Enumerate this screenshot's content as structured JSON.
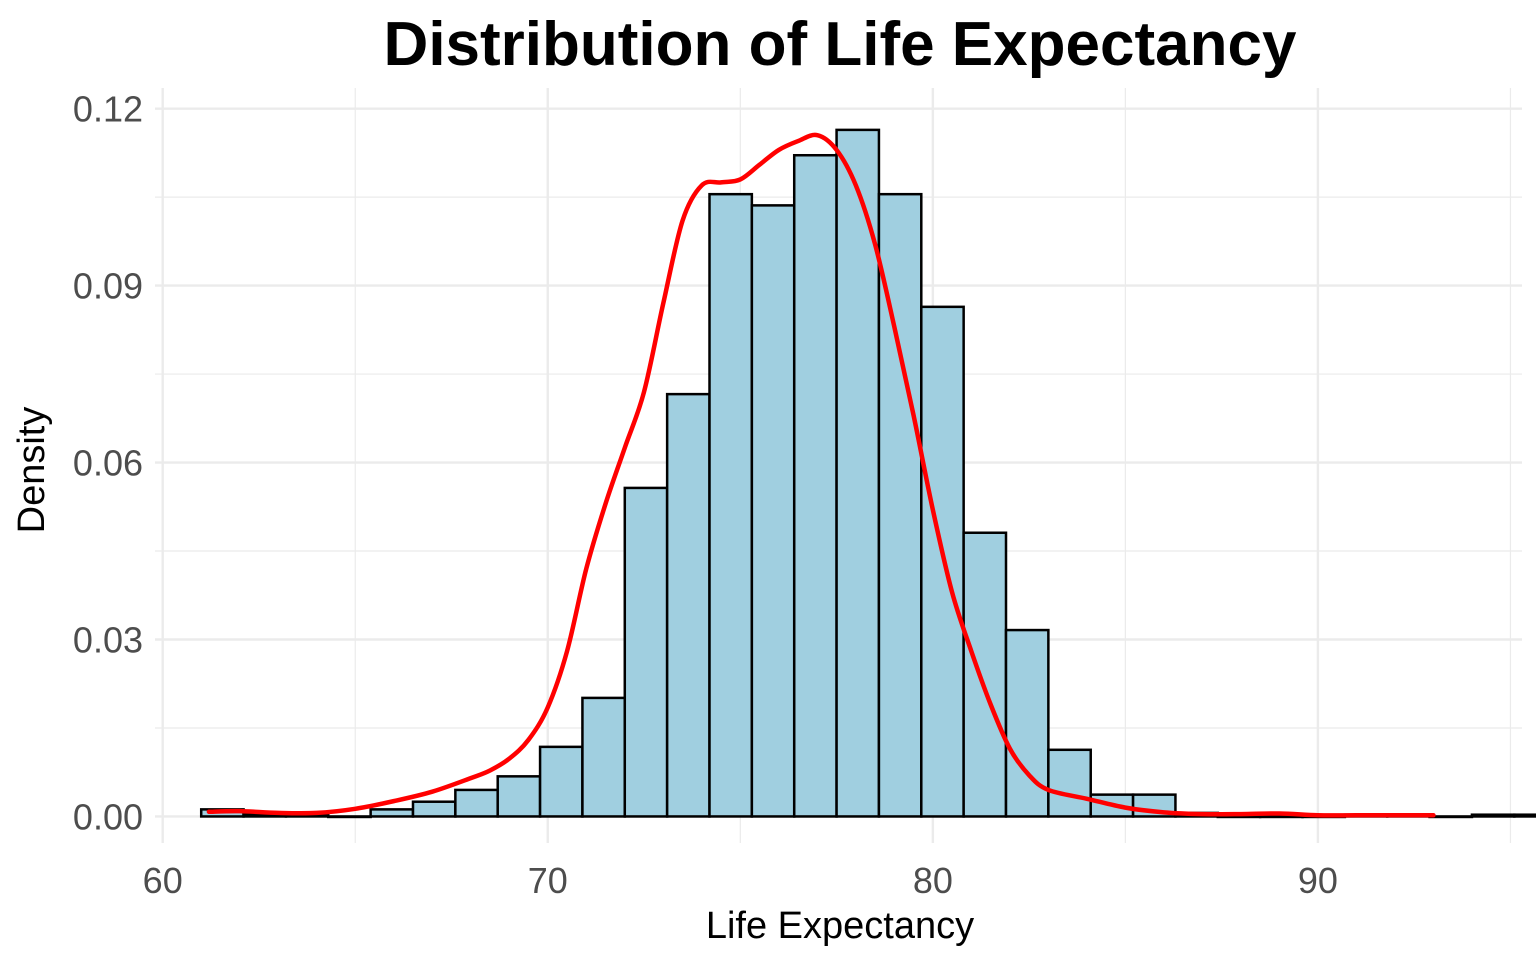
{
  "chart_data": {
    "type": "bar",
    "title": "Distribution of Life Expectancy",
    "xlabel": "Life Expectancy",
    "ylabel": "Density",
    "xlim": [
      59.8,
      95.3
    ],
    "ylim": [
      -0.0045,
      0.1235
    ],
    "x_ticks": [
      {
        "value": 60,
        "label": "60"
      },
      {
        "value": 70,
        "label": "70"
      },
      {
        "value": 80,
        "label": "80"
      },
      {
        "value": 90,
        "label": "90"
      }
    ],
    "y_ticks": [
      {
        "value": 0.0,
        "label": "0.00"
      },
      {
        "value": 0.03,
        "label": "0.03"
      },
      {
        "value": 0.06,
        "label": "0.06"
      },
      {
        "value": 0.09,
        "label": "0.09"
      },
      {
        "value": 0.12,
        "label": "0.12"
      }
    ],
    "grid": true,
    "bar_color": "#a0cfe0",
    "bar_edge_color": "#000000",
    "line_color": "#ff0000",
    "bins": {
      "start": 61.0,
      "width": 1.1,
      "values": [
        0.0012,
        0.0003,
        0.0003,
        0.0,
        0.0012,
        0.0025,
        0.0045,
        0.0068,
        0.0118,
        0.0201,
        0.0557,
        0.0716,
        0.1055,
        0.1036,
        0.1121,
        0.1164,
        0.1055,
        0.0864,
        0.0481,
        0.0316,
        0.0113,
        0.0037,
        0.0037,
        0.0006,
        0.0,
        0.0,
        0.0,
        0.0003,
        0.0003,
        0.0,
        0.0003,
        0.0003
      ]
    },
    "density_line": {
      "name": "Density",
      "x": [
        61.2,
        62.0,
        63.0,
        64.0,
        65.0,
        66.0,
        67.0,
        68.0,
        68.5,
        69.0,
        69.5,
        70.0,
        70.5,
        71.0,
        71.5,
        72.0,
        72.5,
        73.0,
        73.5,
        74.0,
        74.5,
        75.0,
        75.5,
        76.0,
        76.5,
        77.0,
        77.5,
        78.0,
        78.5,
        79.0,
        79.5,
        80.0,
        80.5,
        81.0,
        81.5,
        82.0,
        82.5,
        83.0,
        84.0,
        85.0,
        86.0,
        87.0,
        88.0,
        89.0,
        90.0,
        91.0,
        92.0,
        93.0
      ],
      "y": [
        0.0008,
        0.0009,
        0.0006,
        0.0006,
        0.0013,
        0.0026,
        0.0042,
        0.0065,
        0.0078,
        0.0098,
        0.013,
        0.0185,
        0.028,
        0.042,
        0.053,
        0.0625,
        0.072,
        0.087,
        0.101,
        0.107,
        0.1075,
        0.108,
        0.1105,
        0.113,
        0.1145,
        0.1155,
        0.113,
        0.107,
        0.097,
        0.083,
        0.068,
        0.052,
        0.038,
        0.028,
        0.019,
        0.0115,
        0.007,
        0.0045,
        0.003,
        0.0015,
        0.0007,
        0.0004,
        0.0004,
        0.0005,
        0.0002,
        0.0002,
        0.0002,
        0.0002
      ]
    }
  }
}
